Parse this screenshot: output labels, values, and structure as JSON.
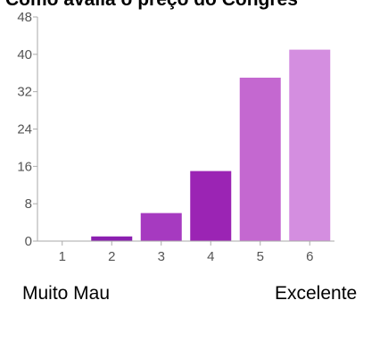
{
  "chart_data": {
    "type": "bar",
    "title": "Como avalia o preço do Congres",
    "categories": [
      "1",
      "2",
      "3",
      "4",
      "5",
      "6"
    ],
    "values": [
      0,
      1,
      6,
      15,
      35,
      41
    ],
    "ylim": [
      0,
      48
    ],
    "yticks": [
      "0",
      "8",
      "16",
      "24",
      "32",
      "40",
      "48"
    ],
    "colors": [
      "#8b1fb0",
      "#8b1fb0",
      "#a63ac0",
      "#9b24b4",
      "#c468d0",
      "#d48ee0"
    ],
    "grid": false,
    "xlabel": "",
    "ylabel": ""
  },
  "scale_labels": {
    "low": "Muito Mau",
    "high": "Excelente"
  }
}
